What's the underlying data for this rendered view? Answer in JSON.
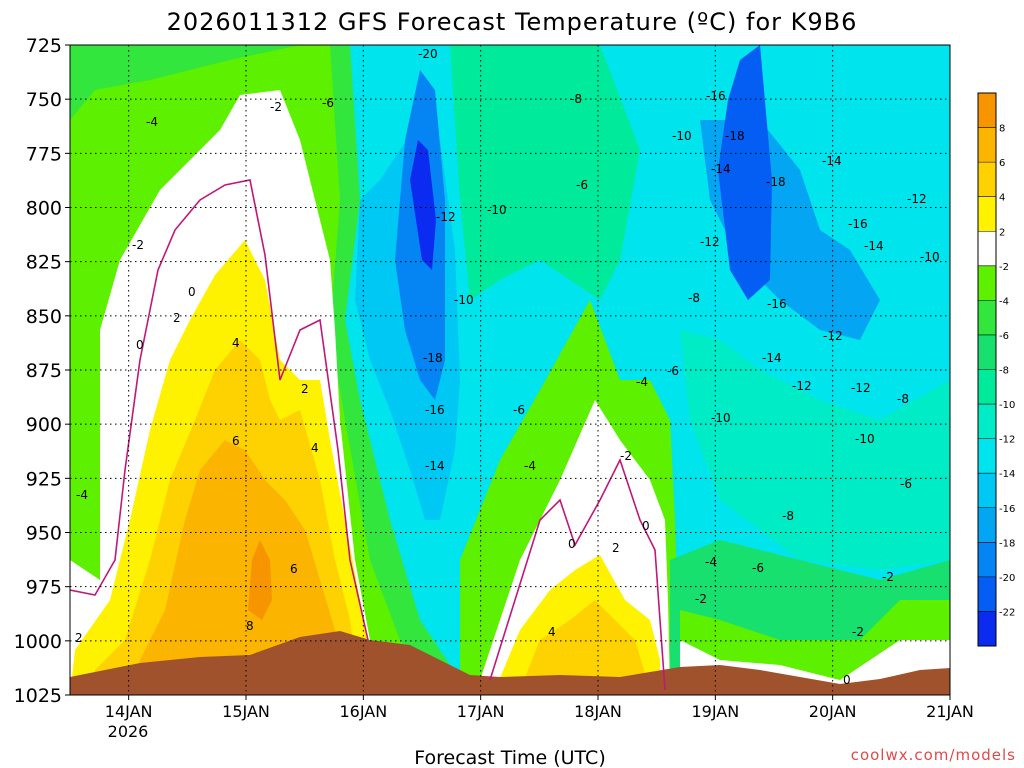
{
  "chart_data": {
    "type": "contour",
    "title": "2026011312 GFS Forecast Temperature (ºC) for K9B6",
    "xlabel": "Forecast Time (UTC)",
    "ylabel": "",
    "x_ticks": [
      "14JAN",
      "15JAN",
      "16JAN",
      "17JAN",
      "18JAN",
      "19JAN",
      "20JAN",
      "21JAN"
    ],
    "x_year_label": "2026",
    "y_ticks": [
      725,
      750,
      775,
      800,
      825,
      850,
      875,
      900,
      925,
      950,
      975,
      1000,
      1025
    ],
    "ylim": [
      725,
      1025
    ],
    "grid": true,
    "colorbar": {
      "labels": [
        "8",
        "6",
        "4",
        "2",
        "-2",
        "-4",
        "-6",
        "-8",
        "-10",
        "-12",
        "-14",
        "-16",
        "-18",
        "-20",
        "-22"
      ],
      "colors": [
        "#f79500",
        "#fbb400",
        "#fdd200",
        "#fff200",
        "#ffffff",
        "#5df000",
        "#33e63d",
        "#17e06e",
        "#00ea9c",
        "#00ecc6",
        "#00e4ee",
        "#00c8f4",
        "#04a6f4",
        "#0584f4",
        "#055ef4",
        "#0b2cf0"
      ]
    },
    "contour_labels": [
      "-20",
      "-18",
      "-16",
      "-14",
      "-12",
      "-10",
      "-8",
      "-6",
      "-4",
      "-2",
      "0",
      "2",
      "4",
      "6",
      "8"
    ],
    "credit": "coolwx.com/models"
  },
  "colors": {
    "ground": "#a0522d",
    "zero_line": "#c0187a"
  }
}
